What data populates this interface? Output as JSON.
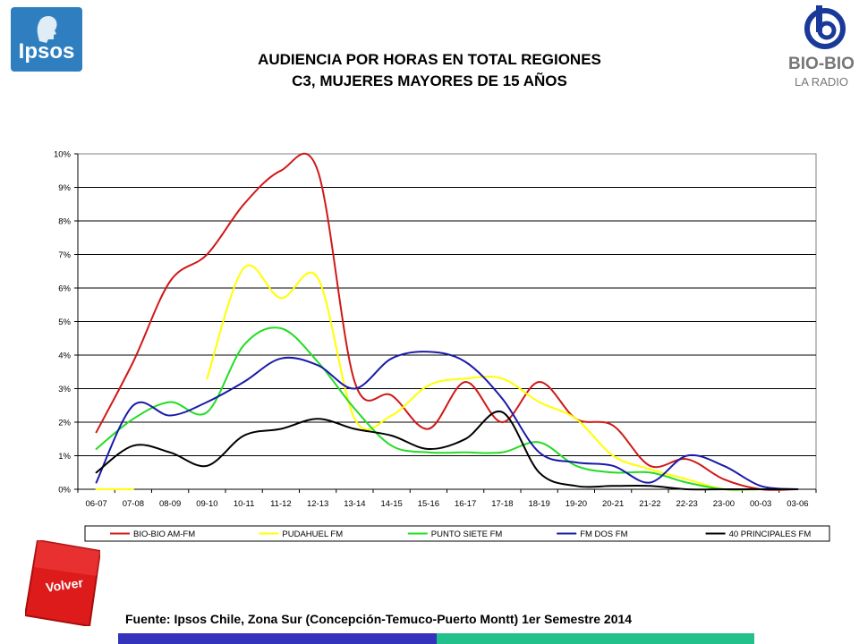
{
  "header": {
    "title_line1": "AUDIENCIA POR HORAS EN TOTAL REGIONES",
    "title_line2": "C3, MUJERES MAYORES DE 15 AÑOS",
    "ipsos_logo_text": "Ipsos",
    "biobio_logo_name": "BIO-BIO",
    "biobio_logo_sub": "LA RADIO"
  },
  "footer": {
    "volver_label": "Volver",
    "source": "Fuente: Ipsos Chile, Zona Sur (Concepción-Temuco-Puerto Montt) 1er Semestre 2014"
  },
  "colors": {
    "ipsos_blue": "#2f7fc0",
    "volver_red": "#dd1b1b",
    "bar_blue": "#3333bb",
    "bar_green": "#22c08a"
  },
  "chart_data": {
    "type": "line",
    "title": "",
    "xlabel": "",
    "ylabel": "",
    "ylim": [
      0,
      10
    ],
    "yticks": [
      "0%",
      "1%",
      "2%",
      "3%",
      "4%",
      "5%",
      "6%",
      "7%",
      "8%",
      "9%",
      "10%"
    ],
    "grid": true,
    "legend": "bottom",
    "categories": [
      "06-07",
      "07-08",
      "08-09",
      "09-10",
      "10-11",
      "11-12",
      "12-13",
      "13-14",
      "14-15",
      "15-16",
      "16-17",
      "17-18",
      "18-19",
      "19-20",
      "20-21",
      "21-22",
      "22-23",
      "23-00",
      "00-03",
      "03-06"
    ],
    "series": [
      {
        "name": "BIO-BIO AM-FM",
        "color": "#d01818",
        "values": [
          1.7,
          3.8,
          6.2,
          7.0,
          8.5,
          9.5,
          9.5,
          3.2,
          2.8,
          1.8,
          3.2,
          2.0,
          3.2,
          2.1,
          1.9,
          0.7,
          0.9,
          0.3,
          0.0,
          0.0
        ]
      },
      {
        "name": "PUDAHUEL FM",
        "color": "#ffff00",
        "values": [
          0.0,
          0.0,
          null,
          3.3,
          6.6,
          5.7,
          6.3,
          2.1,
          2.2,
          3.1,
          3.3,
          3.3,
          2.6,
          2.1,
          1.0,
          0.6,
          0.3,
          0.0,
          0.0,
          0.0
        ]
      },
      {
        "name": "PUNTO SIETE FM",
        "color": "#22dd22",
        "values": [
          1.2,
          2.1,
          2.6,
          2.3,
          4.3,
          4.8,
          3.8,
          2.4,
          1.3,
          1.1,
          1.1,
          1.1,
          1.4,
          0.7,
          0.5,
          0.5,
          0.2,
          0.0,
          0.0,
          0.0
        ]
      },
      {
        "name": "FM DOS FM",
        "color": "#1a1aa8",
        "values": [
          0.2,
          2.5,
          2.2,
          2.6,
          3.2,
          3.9,
          3.7,
          3.0,
          3.9,
          4.1,
          3.8,
          2.7,
          1.1,
          0.8,
          0.7,
          0.2,
          1.0,
          0.7,
          0.1,
          0.0
        ]
      },
      {
        "name": "40 PRINCIPALES FM",
        "color": "#000000",
        "values": [
          0.5,
          1.3,
          1.1,
          0.7,
          1.6,
          1.8,
          2.1,
          1.8,
          1.6,
          1.2,
          1.5,
          2.3,
          0.5,
          0.1,
          0.1,
          0.1,
          0.0,
          0.0,
          0.0,
          0.0
        ]
      }
    ]
  }
}
